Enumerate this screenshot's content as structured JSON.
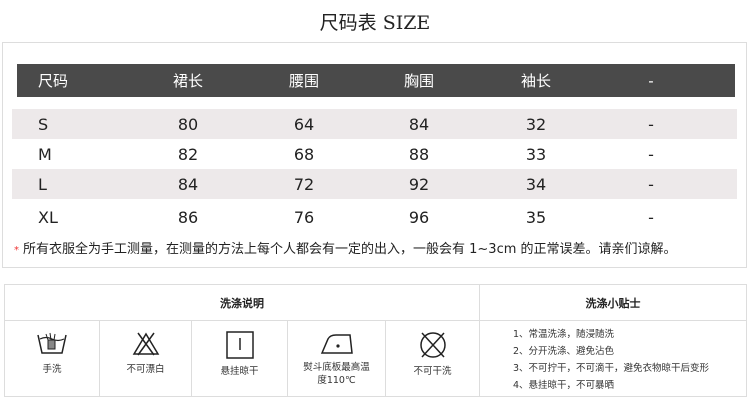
{
  "title": "尺码表 SIZE",
  "table": {
    "headers": [
      "尺码",
      "裙长",
      "腰围",
      "胸围",
      "袖长",
      "-"
    ],
    "rows": [
      [
        "S",
        "80",
        "64",
        "84",
        "32",
        "-"
      ],
      [
        "M",
        "82",
        "68",
        "88",
        "33",
        "-"
      ],
      [
        "L",
        "84",
        "72",
        "92",
        "34",
        "-"
      ],
      [
        "XL",
        "86",
        "76",
        "96",
        "35",
        "-"
      ]
    ],
    "header_bg": "#4a4a4a",
    "stripe_bg": "#ede9ea"
  },
  "note": {
    "star": "*",
    "text": "所有衣服全为手工测量，在测量的方法上每个人都会有一定的出入，一般会有 1~3cm 的正常误差。请亲们谅解。"
  },
  "care": {
    "title": "洗涤说明",
    "items": [
      {
        "icon": "hand-wash-icon",
        "label": "手洗"
      },
      {
        "icon": "no-bleach-icon",
        "label": "不可漂白"
      },
      {
        "icon": "hang-dry-icon",
        "label": "悬挂晾干"
      },
      {
        "icon": "iron-low-icon",
        "label": "熨斗底板最高温度110℃"
      },
      {
        "icon": "no-dry-clean-icon",
        "label": "不可干洗"
      }
    ],
    "tips_title": "洗涤小贴士",
    "tips": [
      "1、常温洗涤，随浸随洗",
      "2、分开洗涤、避免沾色",
      "3、不可拧干，不可滴干，避免衣物晾干后变形",
      "4、悬挂晾干，不可暴晒"
    ]
  }
}
